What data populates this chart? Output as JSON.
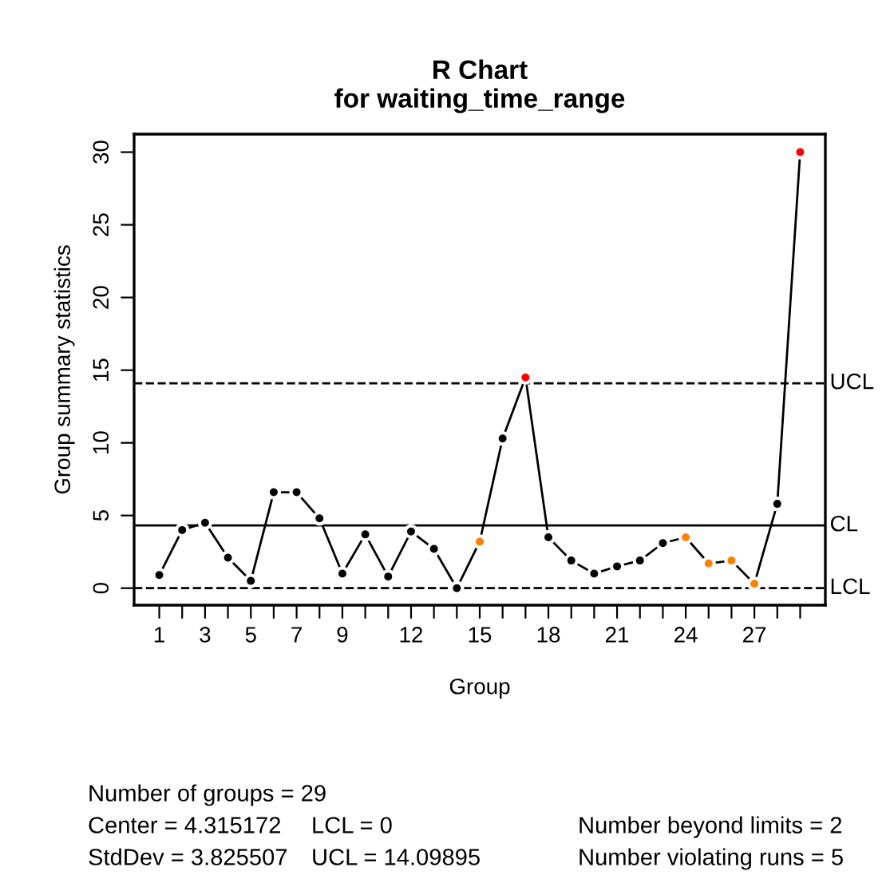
{
  "chart_data": {
    "type": "line",
    "title": "R Chart\nfor waiting_time_range",
    "xlabel": "Group",
    "ylabel": "Group summary statistics",
    "x": [
      1,
      2,
      3,
      4,
      5,
      6,
      7,
      8,
      9,
      10,
      11,
      12,
      13,
      14,
      15,
      16,
      17,
      18,
      19,
      20,
      21,
      22,
      23,
      24,
      25,
      26,
      27,
      28,
      29
    ],
    "series": [
      {
        "color": "#000000",
        "colors": [
          "#000000",
          "#000000",
          "#000000",
          "#000000",
          "#000000",
          "#000000",
          "#000000",
          "#000000",
          "#000000",
          "#000000",
          "#000000",
          "#000000",
          "#000000",
          "#000000",
          "#ff8000",
          "#000000",
          "#ff0000",
          "#000000",
          "#000000",
          "#000000",
          "#000000",
          "#000000",
          "#000000",
          "#ff8000",
          "#ff8000",
          "#ff8000",
          "#ff8000",
          "#000000",
          "#ff0000"
        ],
        "values": [
          0.9,
          4.0,
          4.5,
          2.1,
          0.5,
          6.6,
          6.6,
          4.8,
          1.0,
          3.7,
          0.8,
          3.9,
          2.7,
          0,
          3.2,
          10.3,
          14.5,
          3.5,
          1.9,
          1.0,
          1.5,
          1.9,
          3.1,
          3.5,
          1.7,
          1.9,
          0.3,
          5.8,
          30.0
        ]
      }
    ],
    "marker": "circle",
    "line_style": "solid",
    "grid": false,
    "legend": false,
    "xlim": [
      -0.1,
      30.1
    ],
    "xticks": [
      1,
      {
        "value": 2,
        "label": null
      },
      3,
      {
        "value": 4,
        "label": null
      },
      5,
      {
        "value": 6,
        "label": null
      },
      7,
      {
        "value": 8,
        "label": null
      },
      9,
      {
        "value": 10,
        "label": null
      },
      {
        "value": 11,
        "label": null
      },
      12,
      {
        "value": 13,
        "label": null
      },
      {
        "value": 14,
        "label": null
      },
      15,
      {
        "value": 16,
        "label": null
      },
      {
        "value": 17,
        "label": null
      },
      18,
      {
        "value": 19,
        "label": null
      },
      {
        "value": 20,
        "label": null
      },
      21,
      {
        "value": 22,
        "label": null
      },
      {
        "value": 23,
        "label": null
      },
      24,
      {
        "value": 25,
        "label": null
      },
      {
        "value": 26,
        "label": null
      },
      27,
      {
        "value": 28,
        "label": null
      },
      {
        "value": 29,
        "label": null
      }
    ],
    "ylim": [
      -1.17,
      31.24
    ],
    "yticks": [
      0,
      5,
      10,
      15,
      20,
      25,
      30
    ],
    "ref_lines": [
      {
        "axis": "y",
        "value": 14.09895,
        "label": "UCL",
        "line_style": "dashed"
      },
      {
        "axis": "y",
        "value": 4.315172,
        "label": "CL",
        "line_style": "solid"
      },
      {
        "axis": "y",
        "value": 0,
        "label": "LCL",
        "line_style": "dashed"
      }
    ],
    "annotations": [
      "Number of groups = 29",
      "Center = 4.315172",
      "LCL = 0",
      "Number beyond limits = 2",
      "StdDev = 3.825507",
      "UCL = 14.09895",
      "Number violating runs = 5"
    ]
  }
}
